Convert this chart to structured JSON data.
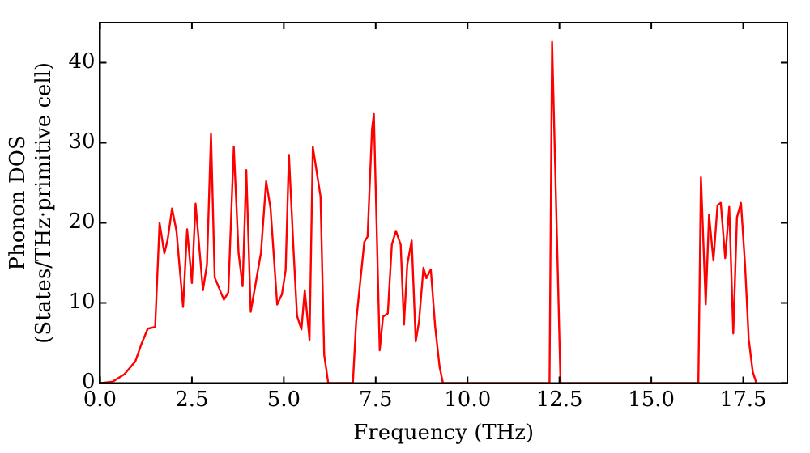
{
  "chart_data": {
    "type": "line",
    "xlabel": "Frequency (THz)",
    "ylabel": "Phonon DOS\n(States/THz·primitive cell)",
    "xlim": [
      0,
      18.7
    ],
    "ylim": [
      0,
      45
    ],
    "xticks": [
      {
        "value": 0,
        "label": "0.0"
      },
      {
        "value": 2.5,
        "label": "2.5"
      },
      {
        "value": 5,
        "label": "5.0"
      },
      {
        "value": 7.5,
        "label": "7.5"
      },
      {
        "value": 10,
        "label": "10.0"
      },
      {
        "value": 12.5,
        "label": "12.5"
      },
      {
        "value": 15,
        "label": "15.0"
      },
      {
        "value": 17.5,
        "label": "17.5"
      }
    ],
    "yticks": [
      0,
      10,
      20,
      30,
      40
    ],
    "grid": false,
    "legend": false,
    "marker": "none",
    "line_style": "solid",
    "series": [
      {
        "color": "#ff0000",
        "x": [
          0,
          0.35,
          0.66,
          0.96,
          1.12,
          1.3,
          1.5,
          1.62,
          1.75,
          1.84,
          1.96,
          2.08,
          2.26,
          2.37,
          2.5,
          2.6,
          2.8,
          2.91,
          3.02,
          3.12,
          3.37,
          3.49,
          3.64,
          3.77,
          3.88,
          3.98,
          4.1,
          4.38,
          4.52,
          4.64,
          4.82,
          4.95,
          5.05,
          5.14,
          5.27,
          5.36,
          5.48,
          5.57,
          5.7,
          5.79,
          6.0,
          6.1,
          6.21,
          6.88,
          6.97,
          7.19,
          7.28,
          7.4,
          7.45,
          7.61,
          7.7,
          7.83,
          7.94,
          8.05,
          8.18,
          8.27,
          8.36,
          8.48,
          8.59,
          8.68,
          8.8,
          8.88,
          9.0,
          9.12,
          9.24,
          9.33,
          12.23,
          12.3,
          12.53,
          16.28,
          16.35,
          16.48,
          16.57,
          16.69,
          16.8,
          16.89,
          17.01,
          17.12,
          17.23,
          17.33,
          17.44,
          17.55,
          17.65,
          17.76,
          17.86
        ],
        "values": [
          0,
          0.2,
          1.1,
          2.7,
          4.8,
          6.8,
          7,
          20,
          16.2,
          17.9,
          21.8,
          19,
          9.5,
          19.2,
          12.5,
          22.4,
          11.6,
          14.8,
          31.1,
          13.2,
          10.4,
          11.3,
          29.5,
          16.2,
          12.1,
          26.6,
          8.9,
          16.3,
          25.2,
          21.8,
          9.8,
          11.1,
          14.1,
          28.5,
          16.2,
          8.4,
          6.7,
          11.6,
          5.4,
          29.5,
          23.3,
          3.5,
          0,
          0,
          7.7,
          17.6,
          18.3,
          31.7,
          33.6,
          4.1,
          8.3,
          8.7,
          17.3,
          19,
          17.3,
          7.3,
          14.8,
          17.8,
          5.2,
          7.7,
          14.4,
          13.1,
          14.2,
          7,
          2,
          0,
          0,
          42.6,
          0,
          0,
          25.7,
          9.8,
          21,
          15.3,
          22.2,
          22.5,
          15.6,
          22,
          6.2,
          20.7,
          22.5,
          14.8,
          5.5,
          1.4,
          0
        ]
      }
    ]
  }
}
